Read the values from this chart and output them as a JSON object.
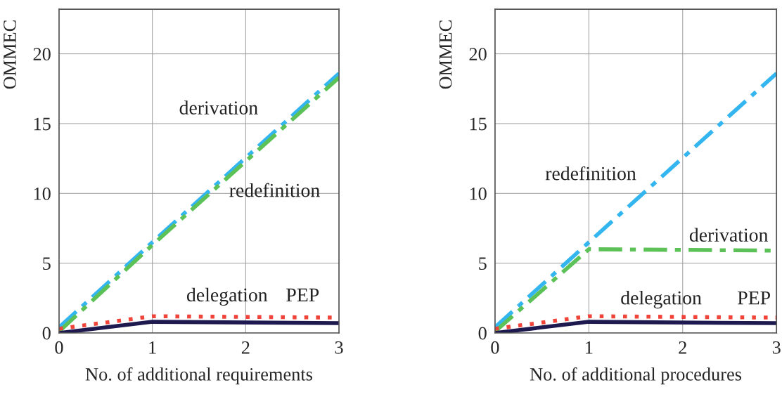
{
  "chart_data": [
    {
      "type": "line",
      "x": [
        0,
        1,
        3
      ],
      "xlabel": "No. of additional requirements",
      "ylabel": "OMMEC",
      "xlim": [
        0,
        3
      ],
      "xticks": [
        0,
        1,
        2,
        3
      ],
      "ylim": [
        0,
        23.2
      ],
      "yticks": [
        0,
        5,
        10,
        15,
        20
      ],
      "grid": true,
      "series": [
        {
          "name": "derivation",
          "color": "#33b5f0",
          "values": [
            0.4,
            6.5,
            18.6
          ],
          "line_style": "dashed"
        },
        {
          "name": "redefinition",
          "color": "#5cc257",
          "values": [
            0.1,
            6.3,
            18.3
          ],
          "line_style": "dashed"
        },
        {
          "name": "delegation",
          "color": "#f0443a",
          "values": [
            0.3,
            1.2,
            1.1
          ],
          "line_style": "dotted"
        },
        {
          "name": "PEP",
          "color": "#1e1a50",
          "values": [
            0,
            0.8,
            0.7
          ],
          "line_style": "solid"
        }
      ]
    },
    {
      "type": "line",
      "x": [
        0,
        1,
        3
      ],
      "xlabel": "No. of additional procedures",
      "ylabel": "OMMEC",
      "xlim": [
        0,
        3
      ],
      "xticks": [
        0,
        1,
        2,
        3
      ],
      "ylim": [
        0,
        23.2
      ],
      "yticks": [
        0,
        5,
        10,
        15,
        20
      ],
      "grid": true,
      "series": [
        {
          "name": "redefinition",
          "color": "#33b5f0",
          "values": [
            0.4,
            6.5,
            18.6
          ],
          "line_style": "dashed"
        },
        {
          "name": "derivation",
          "color": "#5cc257",
          "values": [
            0.1,
            6.0,
            5.9
          ],
          "line_style": "dashed"
        },
        {
          "name": "delegation",
          "color": "#f0443a",
          "values": [
            0.3,
            1.2,
            1.1
          ],
          "line_style": "dotted"
        },
        {
          "name": "PEP",
          "color": "#1e1a50",
          "values": [
            0,
            0.8,
            0.7
          ],
          "line_style": "solid"
        }
      ]
    }
  ]
}
